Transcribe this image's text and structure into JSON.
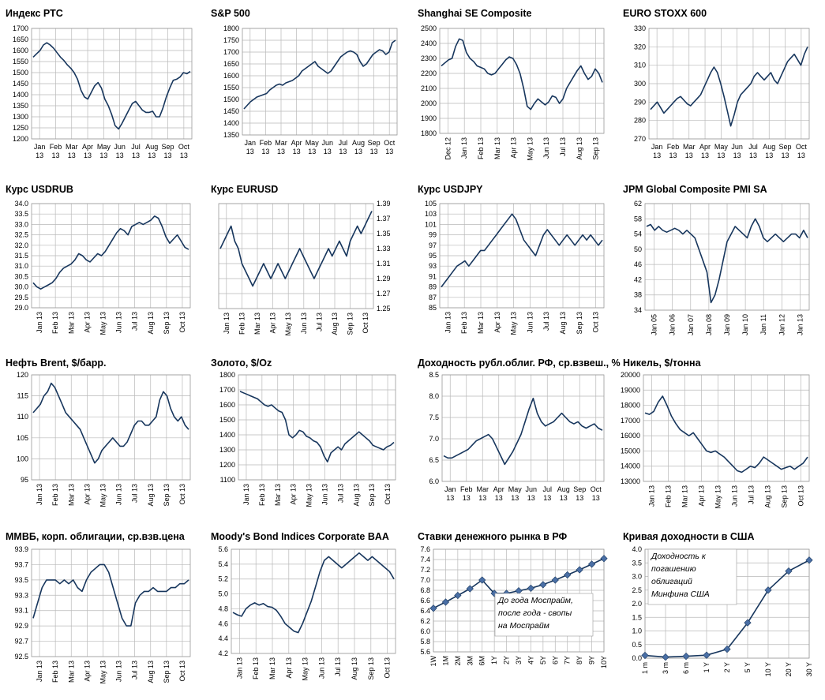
{
  "chart_data": [
    {
      "type": "line",
      "title": "Индекс РТС",
      "ylim": [
        1200,
        1700
      ],
      "yticks": [
        1200,
        1250,
        1300,
        1350,
        1400,
        1450,
        1500,
        1550,
        1600,
        1650,
        1700
      ],
      "ydec": 0,
      "xticks": [
        "Jan\n13",
        "Feb\n13",
        "Mar\n13",
        "Apr\n13",
        "May\n13",
        "Jun\n13",
        "Jul\n13",
        "Aug\n13",
        "Sep\n13",
        "Oct\n13"
      ],
      "xrot": false,
      "y": [
        1570,
        1585,
        1600,
        1625,
        1635,
        1625,
        1610,
        1590,
        1570,
        1555,
        1535,
        1520,
        1500,
        1470,
        1420,
        1390,
        1380,
        1410,
        1440,
        1455,
        1430,
        1380,
        1350,
        1310,
        1260,
        1245,
        1270,
        1300,
        1330,
        1360,
        1370,
        1350,
        1330,
        1320,
        1320,
        1325,
        1300,
        1300,
        1340,
        1390,
        1430,
        1465,
        1470,
        1480,
        1500,
        1495,
        1505
      ]
    },
    {
      "type": "line",
      "title": "S&P 500",
      "ylim": [
        1350,
        1800
      ],
      "yticks": [
        1350,
        1400,
        1450,
        1500,
        1550,
        1600,
        1650,
        1700,
        1750,
        1800
      ],
      "ydec": 0,
      "xticks": [
        "Jan\n13",
        "Feb\n13",
        "Mar\n13",
        "Apr\n13",
        "May\n13",
        "Jun\n13",
        "Jul\n13",
        "Aug\n13",
        "Sep\n13",
        "Oct\n13"
      ],
      "xrot": false,
      "y": [
        1460,
        1475,
        1490,
        1500,
        1510,
        1515,
        1520,
        1525,
        1540,
        1550,
        1560,
        1565,
        1560,
        1570,
        1575,
        1580,
        1590,
        1600,
        1620,
        1630,
        1640,
        1650,
        1660,
        1640,
        1630,
        1620,
        1610,
        1620,
        1640,
        1660,
        1680,
        1690,
        1700,
        1705,
        1700,
        1690,
        1660,
        1640,
        1650,
        1670,
        1690,
        1700,
        1710,
        1705,
        1690,
        1700,
        1740,
        1750
      ]
    },
    {
      "type": "line",
      "title": "Shanghai SE Composite",
      "ylim": [
        1800,
        2500
      ],
      "yticks": [
        1800,
        1900,
        2000,
        2100,
        2200,
        2300,
        2400,
        2500
      ],
      "ydec": 0,
      "xticks": [
        "Dec 12",
        "Jan 13",
        "Feb 13",
        "Mar 13",
        "Apr 13",
        "May 13",
        "Jun 13",
        "Jul 13",
        "Aug 13",
        "Sep 13"
      ],
      "xrot": true,
      "y": [
        2250,
        2270,
        2290,
        2300,
        2380,
        2430,
        2420,
        2340,
        2300,
        2280,
        2250,
        2240,
        2230,
        2200,
        2190,
        2200,
        2230,
        2260,
        2290,
        2310,
        2300,
        2260,
        2200,
        2100,
        1980,
        1960,
        2000,
        2030,
        2010,
        1990,
        2010,
        2050,
        2040,
        2000,
        2030,
        2100,
        2140,
        2180,
        2220,
        2250,
        2200,
        2160,
        2180,
        2230,
        2200,
        2140
      ]
    },
    {
      "type": "line",
      "title": "EURO STOXX 600",
      "ylim": [
        270,
        330
      ],
      "yticks": [
        270,
        280,
        290,
        300,
        310,
        320,
        330
      ],
      "ydec": 0,
      "xticks": [
        "Jan\n13",
        "Feb\n13",
        "Mar\n13",
        "Apr\n13",
        "May\n13",
        "Jun\n13",
        "Jul\n13",
        "Aug\n13",
        "Sep\n13",
        "Oct\n13"
      ],
      "xrot": false,
      "y": [
        286,
        288,
        290,
        287,
        284,
        286,
        288,
        290,
        292,
        293,
        291,
        289,
        288,
        290,
        292,
        294,
        298,
        302,
        306,
        309,
        306,
        300,
        293,
        285,
        277,
        283,
        290,
        294,
        296,
        298,
        300,
        304,
        306,
        304,
        302,
        304,
        306,
        302,
        300,
        304,
        308,
        312,
        314,
        316,
        313,
        310,
        316,
        320
      ]
    },
    {
      "type": "line",
      "title": "Курс USDRUB",
      "ylim": [
        29.0,
        34.0
      ],
      "yticks": [
        29.0,
        29.5,
        30.0,
        30.5,
        31.0,
        31.5,
        32.0,
        32.5,
        33.0,
        33.5,
        34.0
      ],
      "ydec": 1,
      "xticks": [
        "Jan 13",
        "Feb 13",
        "Mar 13",
        "Apr 13",
        "May 13",
        "Jun 13",
        "Jul 13",
        "Aug 13",
        "Sep 13",
        "Oct 13"
      ],
      "xrot": true,
      "y": [
        30.2,
        30.0,
        29.9,
        30.0,
        30.1,
        30.2,
        30.4,
        30.7,
        30.9,
        31.0,
        31.1,
        31.3,
        31.6,
        31.5,
        31.3,
        31.2,
        31.4,
        31.6,
        31.5,
        31.7,
        32.0,
        32.3,
        32.6,
        32.8,
        32.7,
        32.5,
        32.9,
        33.0,
        33.1,
        33.0,
        33.1,
        33.2,
        33.4,
        33.3,
        32.9,
        32.4,
        32.1,
        32.3,
        32.5,
        32.2,
        31.9,
        31.8
      ]
    },
    {
      "type": "line",
      "title": "Курс EURUSD",
      "ylim": [
        1.25,
        1.39
      ],
      "yticks": [
        1.25,
        1.27,
        1.29,
        1.31,
        1.33,
        1.35,
        1.37,
        1.39
      ],
      "ydec": 2,
      "yright": true,
      "xticks": [
        "Jan 13",
        "Feb 13",
        "Mar 13",
        "Apr 13",
        "May 13",
        "Jun 13",
        "Jul 13",
        "Aug 13",
        "Sep 13",
        "Oct 13"
      ],
      "xrot": true,
      "y": [
        1.33,
        1.34,
        1.35,
        1.36,
        1.34,
        1.33,
        1.31,
        1.3,
        1.29,
        1.28,
        1.29,
        1.3,
        1.31,
        1.3,
        1.29,
        1.3,
        1.31,
        1.3,
        1.29,
        1.3,
        1.31,
        1.32,
        1.33,
        1.32,
        1.31,
        1.3,
        1.29,
        1.3,
        1.31,
        1.32,
        1.33,
        1.32,
        1.33,
        1.34,
        1.33,
        1.32,
        1.34,
        1.35,
        1.36,
        1.35,
        1.36,
        1.37,
        1.38
      ]
    },
    {
      "type": "line",
      "title": "Курс USDJPY",
      "ylim": [
        85,
        105
      ],
      "yticks": [
        85,
        87,
        89,
        91,
        93,
        95,
        97,
        99,
        101,
        103,
        105
      ],
      "ydec": 0,
      "xticks": [
        "Jan 13",
        "Feb 13",
        "Mar 13",
        "Apr 13",
        "May 13",
        "Jun 13",
        "Jul 13",
        "Aug 13",
        "Sep 13",
        "Oct 13"
      ],
      "xrot": true,
      "y": [
        89,
        90,
        91,
        92,
        93,
        93.5,
        94,
        93,
        94,
        95,
        96,
        96,
        97,
        98,
        99,
        100,
        101,
        102,
        103,
        102,
        100,
        98,
        97,
        96,
        95,
        97,
        99,
        100,
        99,
        98,
        97,
        98,
        99,
        98,
        97,
        98,
        99,
        98,
        99,
        98,
        97,
        98
      ]
    },
    {
      "type": "line",
      "title": "JPM Global Composite PMI SA",
      "ylim": [
        34,
        62
      ],
      "yticks": [
        34,
        38,
        42,
        46,
        50,
        54,
        58,
        62
      ],
      "ydec": 0,
      "xticks": [
        "Jan 05",
        "Jan 06",
        "Jan 07",
        "Jan 08",
        "Jan 09",
        "Jan 10",
        "Jan 11",
        "Jan 12",
        "Jan 13"
      ],
      "xrot": true,
      "y": [
        56,
        56.5,
        55,
        56,
        55,
        54.5,
        55,
        55.5,
        55,
        54,
        55,
        54,
        53,
        50,
        47,
        44,
        36,
        38,
        42,
        47,
        52,
        54,
        56,
        55,
        54,
        53,
        56,
        58,
        56,
        53,
        52,
        53,
        54,
        53,
        52,
        53,
        54,
        54,
        53,
        55,
        53
      ]
    },
    {
      "type": "line",
      "title": "Нефть Brent, $/барр.",
      "ylim": [
        95,
        120
      ],
      "yticks": [
        95,
        100,
        105,
        110,
        115,
        120
      ],
      "ydec": 0,
      "xticks": [
        "Jan 13",
        "Feb 13",
        "Mar 13",
        "Apr 13",
        "May 13",
        "Jun 13",
        "Jul 13",
        "Aug 13",
        "Sep 13",
        "Oct 13"
      ],
      "xrot": true,
      "y": [
        111,
        112,
        113,
        115,
        116,
        118,
        117,
        115,
        113,
        111,
        110,
        109,
        108,
        107,
        105,
        103,
        101,
        99,
        100,
        102,
        103,
        104,
        105,
        104,
        103,
        103,
        104,
        106,
        108,
        109,
        109,
        108,
        108,
        109,
        110,
        114,
        116,
        115,
        112,
        110,
        109,
        110,
        108,
        107
      ]
    },
    {
      "type": "line",
      "title": "Золото, $/Oz",
      "ylim": [
        1100,
        1800
      ],
      "yticks": [
        1100,
        1200,
        1300,
        1400,
        1500,
        1600,
        1700,
        1800
      ],
      "ydec": 0,
      "xticks": [
        "Jan 13",
        "Feb 13",
        "Mar 13",
        "Apr 13",
        "May 13",
        "Jun 13",
        "Jul 13",
        "Aug 13",
        "Sep 13",
        "Oct 13"
      ],
      "xrot": true,
      "y": [
        1690,
        1680,
        1670,
        1660,
        1650,
        1640,
        1620,
        1600,
        1590,
        1600,
        1580,
        1560,
        1550,
        1500,
        1400,
        1380,
        1400,
        1430,
        1420,
        1390,
        1380,
        1360,
        1350,
        1320,
        1260,
        1220,
        1280,
        1300,
        1320,
        1300,
        1340,
        1360,
        1380,
        1400,
        1420,
        1400,
        1380,
        1360,
        1330,
        1320,
        1310,
        1300,
        1320,
        1330,
        1350
      ]
    },
    {
      "type": "line",
      "title": "Доходность рубл.облиг. РФ, ср.взвеш., %",
      "ylim": [
        6,
        8.5
      ],
      "yticks": [
        6,
        6.5,
        7,
        7.5,
        8,
        8.5
      ],
      "ydec": 1,
      "xticks": [
        "Jan\n13",
        "Feb\n13",
        "Mar\n13",
        "Apr\n13",
        "May\n13",
        "Jun\n13",
        "Jul\n13",
        "Aug\n13",
        "Sep\n13",
        "Oct\n13"
      ],
      "xrot": false,
      "y": [
        6.6,
        6.55,
        6.55,
        6.6,
        6.65,
        6.7,
        6.75,
        6.85,
        6.95,
        7.0,
        7.05,
        7.1,
        7.0,
        6.8,
        6.6,
        6.4,
        6.55,
        6.7,
        6.9,
        7.1,
        7.4,
        7.7,
        7.95,
        7.6,
        7.4,
        7.3,
        7.35,
        7.4,
        7.5,
        7.6,
        7.5,
        7.4,
        7.35,
        7.4,
        7.3,
        7.25,
        7.3,
        7.35,
        7.25,
        7.2
      ]
    },
    {
      "type": "line",
      "title": "Никель, $/тонна",
      "ylim": [
        13000,
        20000
      ],
      "yticks": [
        13000,
        14000,
        15000,
        16000,
        17000,
        18000,
        19000,
        20000
      ],
      "ydec": 0,
      "xticks": [
        "Jan 13",
        "Feb 13",
        "Mar 13",
        "Apr 13",
        "May 13",
        "Jun 13",
        "Jul 13",
        "Aug 13",
        "Sep 13",
        "Oct 13"
      ],
      "xrot": true,
      "y": [
        17500,
        17400,
        17600,
        18200,
        18600,
        18000,
        17300,
        16800,
        16400,
        16200,
        16000,
        16200,
        15800,
        15400,
        15000,
        14900,
        15000,
        14800,
        14600,
        14300,
        14000,
        13700,
        13600,
        13800,
        14000,
        13900,
        14200,
        14600,
        14400,
        14200,
        14000,
        13800,
        13900,
        14000,
        13800,
        14000,
        14200,
        14600
      ]
    },
    {
      "type": "line",
      "title": "ММВБ, корп. облигации, ср.взв.цена",
      "ylim": [
        92.5,
        93.9
      ],
      "yticks": [
        92.5,
        92.7,
        92.9,
        93.1,
        93.3,
        93.5,
        93.7,
        93.9
      ],
      "ydec": 1,
      "xticks": [
        "Jan 13",
        "Feb 13",
        "Mar 13",
        "Apr 13",
        "May 13",
        "Jun 13",
        "Jul 13",
        "Aug 13",
        "Sep 13",
        "Oct 13"
      ],
      "xrot": true,
      "y": [
        93.0,
        93.2,
        93.4,
        93.5,
        93.5,
        93.5,
        93.45,
        93.5,
        93.45,
        93.5,
        93.4,
        93.35,
        93.5,
        93.6,
        93.65,
        93.7,
        93.7,
        93.6,
        93.4,
        93.2,
        93.0,
        92.9,
        92.9,
        93.2,
        93.3,
        93.35,
        93.35,
        93.4,
        93.35,
        93.35,
        93.35,
        93.4,
        93.4,
        93.45,
        93.45,
        93.5
      ]
    },
    {
      "type": "line",
      "title": "Moody's Bond Indices Corporate BAA",
      "ylim": [
        4.2,
        5.6
      ],
      "yticks": [
        4.2,
        4.4,
        4.6,
        4.8,
        5.0,
        5.2,
        5.4,
        5.6
      ],
      "ydec": 1,
      "xticks": [
        "Jan 13",
        "Feb 13",
        "Mar 13",
        "Apr 13",
        "May 13",
        "Jun 13",
        "Jul 13",
        "Aug 13",
        "Sep 13",
        "Oct 13"
      ],
      "xrot": true,
      "y": [
        4.75,
        4.72,
        4.7,
        4.8,
        4.85,
        4.88,
        4.85,
        4.87,
        4.83,
        4.82,
        4.78,
        4.7,
        4.6,
        4.55,
        4.5,
        4.48,
        4.6,
        4.75,
        4.9,
        5.1,
        5.3,
        5.45,
        5.5,
        5.45,
        5.4,
        5.35,
        5.4,
        5.45,
        5.5,
        5.55,
        5.5,
        5.45,
        5.5,
        5.45,
        5.4,
        5.35,
        5.3,
        5.2
      ]
    },
    {
      "type": "line",
      "title": "Ставки денежного рынка в РФ",
      "ylim": [
        5.6,
        7.6
      ],
      "yticks": [
        5.6,
        5.8,
        6.0,
        6.2,
        6.4,
        6.6,
        6.8,
        7.0,
        7.2,
        7.4,
        7.6
      ],
      "ydec": 1,
      "xticks": [
        "1W",
        "1M",
        "2M",
        "3M",
        "6M",
        "1Y",
        "2Y",
        "3Y",
        "4Y",
        "5Y",
        "6Y",
        "7Y",
        "8Y",
        "9Y",
        "10Y"
      ],
      "xrot": true,
      "markers": true,
      "y": [
        6.45,
        6.57,
        6.7,
        6.83,
        7.0,
        6.74,
        6.74,
        6.79,
        6.84,
        6.91,
        7.0,
        7.1,
        7.2,
        7.31,
        7.42
      ],
      "note": [
        "До года Моспрайм,",
        "после года - свопы",
        "на Моспрайм"
      ]
    },
    {
      "type": "line",
      "title": "Кривая доходности в США",
      "ylim": [
        0.0,
        4.0
      ],
      "yticks": [
        0.0,
        0.5,
        1.0,
        1.5,
        2.0,
        2.5,
        3.0,
        3.5,
        4.0
      ],
      "ydec": 1,
      "xticks": [
        "1 m",
        "3 m",
        "6 m",
        "1 Y",
        "2 Y",
        "5 Y",
        "10 Y",
        "20 Y",
        "30 Y"
      ],
      "xrot": true,
      "markers": true,
      "y": [
        0.1,
        0.04,
        0.07,
        0.11,
        0.33,
        1.3,
        2.5,
        3.2,
        3.6
      ],
      "note": [
        "Доходность к",
        "погашению",
        "облигаций",
        "Минфина США"
      ]
    }
  ]
}
